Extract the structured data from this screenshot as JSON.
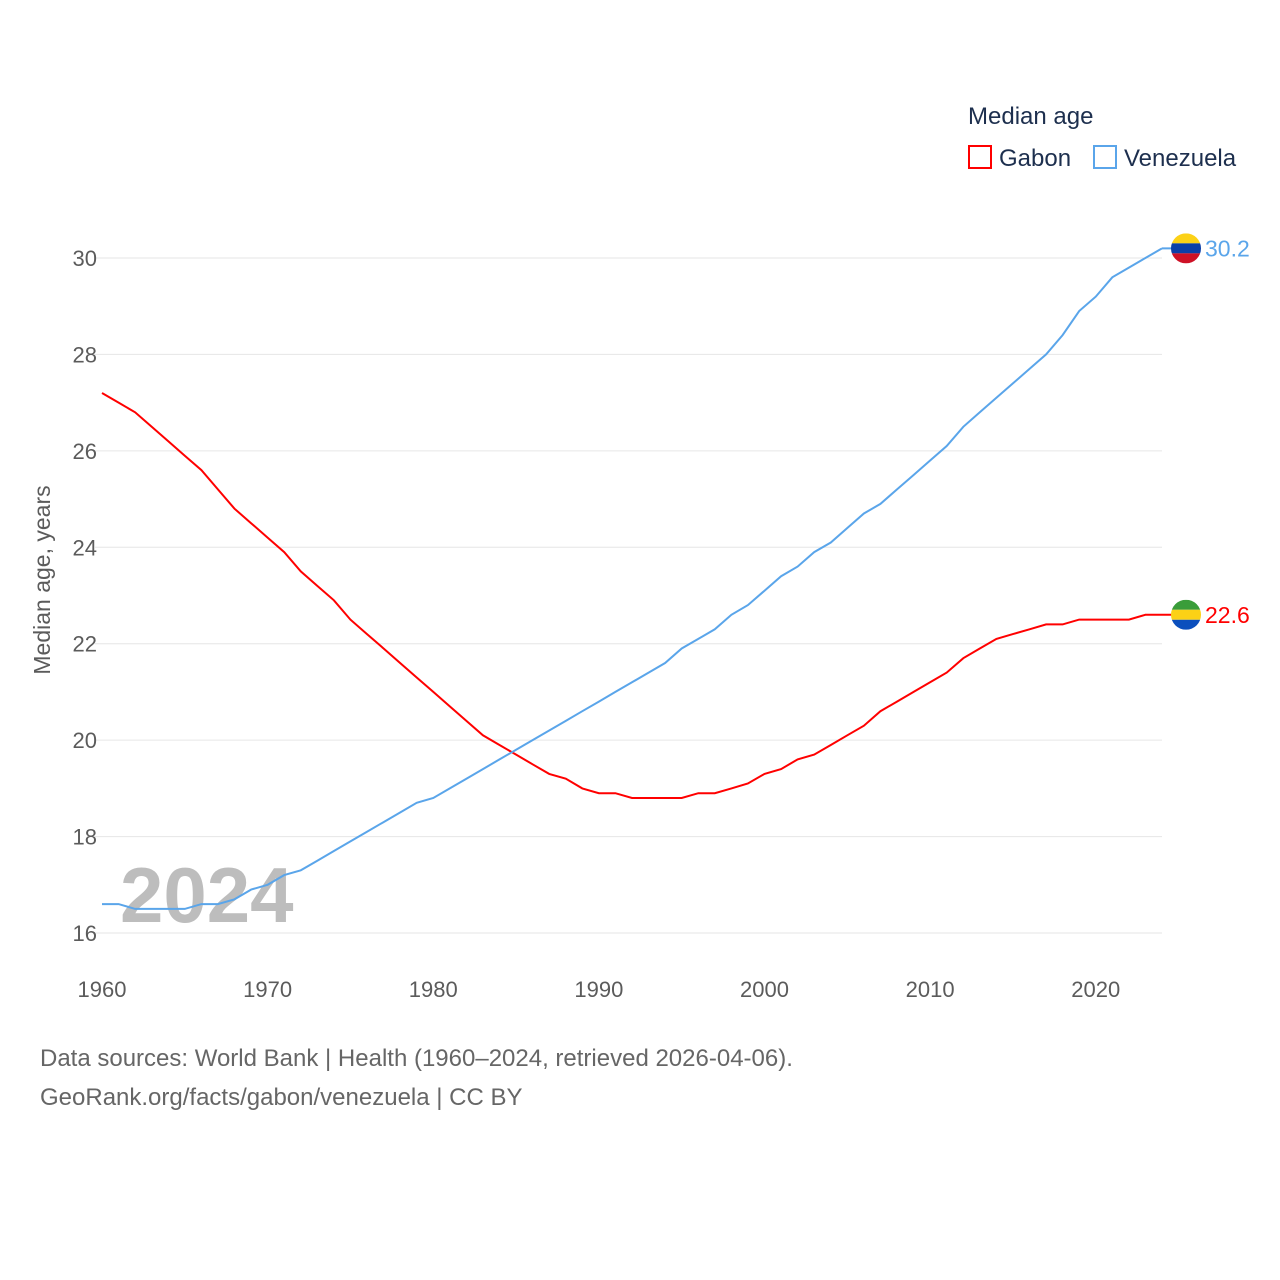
{
  "chart_data": {
    "type": "line",
    "title": "Median age",
    "ylabel": "Median age, years",
    "xlabel": "",
    "xlim": [
      1960,
      2024
    ],
    "ylim": [
      16,
      30
    ],
    "x_ticks": [
      1960,
      1970,
      1980,
      1990,
      2000,
      2010,
      2020
    ],
    "y_ticks": [
      16,
      18,
      20,
      22,
      24,
      26,
      28,
      30
    ],
    "grid": true,
    "legend_placement": "top-right",
    "year_watermark": "2024",
    "x": [
      1960,
      1961,
      1962,
      1963,
      1964,
      1965,
      1966,
      1967,
      1968,
      1969,
      1970,
      1971,
      1972,
      1973,
      1974,
      1975,
      1976,
      1977,
      1978,
      1979,
      1980,
      1981,
      1982,
      1983,
      1984,
      1985,
      1986,
      1987,
      1988,
      1989,
      1990,
      1991,
      1992,
      1993,
      1994,
      1995,
      1996,
      1997,
      1998,
      1999,
      2000,
      2001,
      2002,
      2003,
      2004,
      2005,
      2006,
      2007,
      2008,
      2009,
      2010,
      2011,
      2012,
      2013,
      2014,
      2015,
      2016,
      2017,
      2018,
      2019,
      2020,
      2021,
      2022,
      2023,
      2024
    ],
    "series": [
      {
        "name": "Gabon",
        "color": "#ff0000",
        "end_label": "22.6",
        "flag_colors": [
          "#3a9d3a",
          "#fcd116",
          "#0b4fbd"
        ],
        "values": [
          27.2,
          27.0,
          26.8,
          26.5,
          26.2,
          25.9,
          25.6,
          25.2,
          24.8,
          24.5,
          24.2,
          23.9,
          23.5,
          23.2,
          22.9,
          22.5,
          22.2,
          21.9,
          21.6,
          21.3,
          21.0,
          20.7,
          20.4,
          20.1,
          19.9,
          19.7,
          19.5,
          19.3,
          19.2,
          19.0,
          18.9,
          18.9,
          18.8,
          18.8,
          18.8,
          18.8,
          18.9,
          18.9,
          19.0,
          19.1,
          19.3,
          19.4,
          19.6,
          19.7,
          19.9,
          20.1,
          20.3,
          20.6,
          20.8,
          21.0,
          21.2,
          21.4,
          21.7,
          21.9,
          22.1,
          22.2,
          22.3,
          22.4,
          22.4,
          22.5,
          22.5,
          22.5,
          22.5,
          22.6,
          22.6
        ]
      },
      {
        "name": "Venezuela",
        "color": "#5aa5ea",
        "end_label": "30.2",
        "flag_colors": [
          "#fcd116",
          "#0b3fa8",
          "#ce1126"
        ],
        "values": [
          16.6,
          16.6,
          16.5,
          16.5,
          16.5,
          16.5,
          16.6,
          16.6,
          16.7,
          16.9,
          17.0,
          17.2,
          17.3,
          17.5,
          17.7,
          17.9,
          18.1,
          18.3,
          18.5,
          18.7,
          18.8,
          19.0,
          19.2,
          19.4,
          19.6,
          19.8,
          20.0,
          20.2,
          20.4,
          20.6,
          20.8,
          21.0,
          21.2,
          21.4,
          21.6,
          21.9,
          22.1,
          22.3,
          22.6,
          22.8,
          23.1,
          23.4,
          23.6,
          23.9,
          24.1,
          24.4,
          24.7,
          24.9,
          25.2,
          25.5,
          25.8,
          26.1,
          26.5,
          26.8,
          27.1,
          27.4,
          27.7,
          28.0,
          28.4,
          28.9,
          29.2,
          29.6,
          29.8,
          30.0,
          30.2
        ]
      }
    ]
  },
  "source": {
    "line1": "Data sources: World Bank | Health (1960–2024, retrieved 2026-04-06).",
    "line2": "GeoRank.org/facts/gabon/venezuela | CC BY"
  }
}
